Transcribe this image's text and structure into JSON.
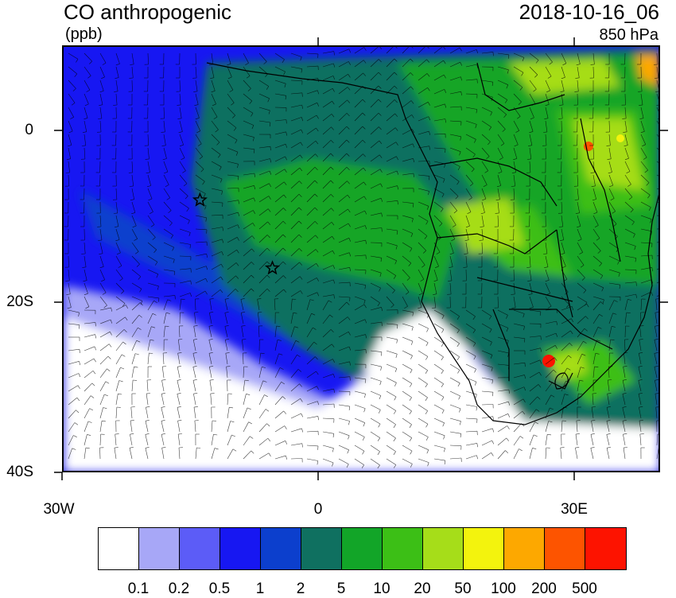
{
  "title": "CO anthropogenic",
  "units": "(ppb)",
  "datetime": "2018-10-16_06",
  "level": "850 hPa",
  "y_ticks": [
    "0",
    "20S",
    "40S"
  ],
  "x_ticks": [
    "30W",
    "0",
    "30E"
  ],
  "colorbar": {
    "colors": [
      "#ffffff",
      "#a7a7f7",
      "#5c5cf7",
      "#1717f2",
      "#0c3fcd",
      "#0f7060",
      "#12a528",
      "#3cbf16",
      "#a6dd19",
      "#f3f30d",
      "#fda800",
      "#fd5400",
      "#fd1300"
    ],
    "labels": [
      "0.1",
      "0.2",
      "0.5",
      "1",
      "2",
      "5",
      "10",
      "20",
      "50",
      "100",
      "200",
      "500"
    ]
  },
  "markers": [
    {
      "name": "star",
      "lon": -14,
      "lat": -8
    },
    {
      "name": "star",
      "lon": -5.5,
      "lat": -16
    }
  ]
}
